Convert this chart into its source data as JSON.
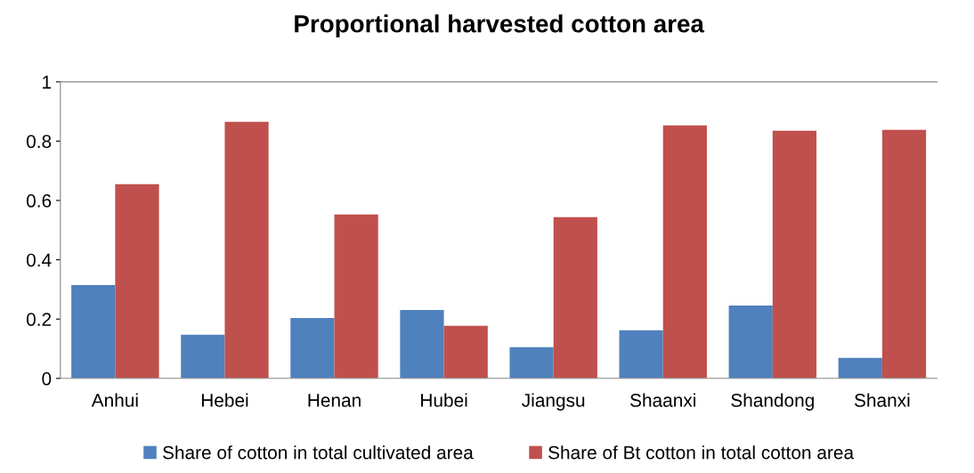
{
  "chart_data": {
    "type": "bar",
    "title": "Proportional harvested cotton area",
    "categories": [
      "Anhui",
      "Hebei",
      "Henan",
      "Hubei",
      "Jiangsu",
      "Shaanxi",
      "Shandong",
      "Shanxi"
    ],
    "series": [
      {
        "name": "Share of cotton in total cultivated area",
        "color": "#4f81bd",
        "values": [
          0.315,
          0.147,
          0.204,
          0.231,
          0.105,
          0.162,
          0.246,
          0.069
        ]
      },
      {
        "name": "Share of Bt cotton in total cotton area",
        "color": "#c0504d",
        "values": [
          0.655,
          0.865,
          0.553,
          0.177,
          0.544,
          0.853,
          0.835,
          0.838
        ]
      }
    ],
    "ylim": [
      0,
      1
    ],
    "yticks": [
      0,
      0.2,
      0.4,
      0.6,
      0.8,
      1
    ],
    "grid": false,
    "legend": "bottom"
  }
}
